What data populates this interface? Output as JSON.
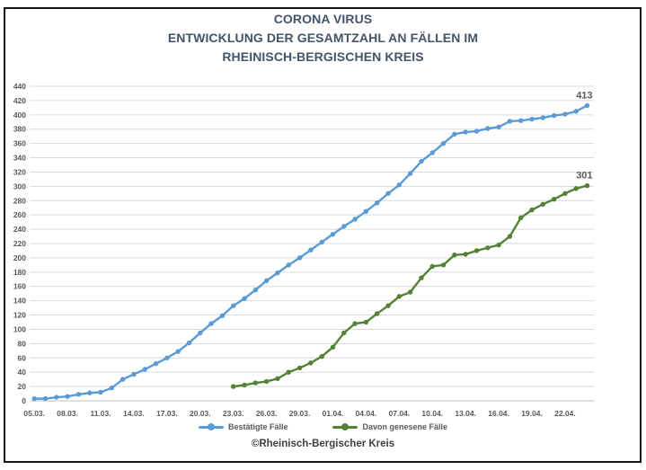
{
  "page": {
    "attribution": "©Rheinisch-Bergischer Kreis"
  },
  "colors": {
    "title": "#44546A",
    "axis_labels": "#595959",
    "grid": "#D9D9D9",
    "axis_line": "#BFBFBF",
    "end_label": "#595959",
    "attribution": "#404040",
    "series_blue": "#5B9BD5",
    "series_green": "#548235"
  },
  "chart_data": {
    "type": "line",
    "title": "CORONA VIRUS ENTWICKLUNG DER GESAMTZAHL AN FÄLLEN IM RHEINISCH-BERGISCHEN KREIS",
    "title_lines": [
      "CORONA VIRUS",
      "ENTWICKLUNG DER GESAMTZAHL AN FÄLLEN IM",
      "RHEINISCH-BERGISCHEN KREIS"
    ],
    "xlabel": "",
    "ylabel": "",
    "ylim": [
      0,
      440
    ],
    "ytick_step": 20,
    "grid": true,
    "legend_position": "bottom",
    "x_tick_labels": [
      "05.03.",
      "08.03.",
      "11.03.",
      "14.03.",
      "17.03.",
      "20.03.",
      "23.03.",
      "26.03.",
      "29.03.",
      "01.04.",
      "04.04.",
      "07.04.",
      "10.04.",
      "13.04.",
      "16.04.",
      "19.04.",
      "22.04."
    ],
    "x_tick_days": [
      0,
      3,
      6,
      9,
      12,
      15,
      18,
      21,
      24,
      27,
      30,
      33,
      36,
      39,
      42,
      45,
      48
    ],
    "series": [
      {
        "name": "Bestätigte Fälle",
        "color": "#5B9BD5",
        "start_day": 0,
        "start_date": "05.03.",
        "end_date": "24.04.",
        "end_label": "413",
        "values": [
          3,
          3,
          5,
          6,
          9,
          11,
          12,
          18,
          30,
          37,
          44,
          52,
          60,
          69,
          81,
          95,
          108,
          119,
          133,
          143,
          155,
          168,
          179,
          190,
          200,
          211,
          222,
          233,
          244,
          254,
          265,
          277,
          290,
          302,
          318,
          335,
          347,
          360,
          373,
          376,
          377,
          381,
          383,
          391,
          392,
          394,
          396,
          399,
          401,
          405,
          413
        ]
      },
      {
        "name": "Davon genesene Fälle",
        "color": "#548235",
        "start_day": 18,
        "start_date": "23.03.",
        "end_date": "24.04.",
        "end_label": "301",
        "values": [
          20,
          22,
          25,
          27,
          31,
          40,
          46,
          53,
          62,
          75,
          95,
          108,
          110,
          122,
          133,
          146,
          152,
          172,
          188,
          190,
          204,
          205,
          210,
          214,
          218,
          230,
          256,
          267,
          275,
          282,
          290,
          297,
          301
        ]
      }
    ]
  }
}
